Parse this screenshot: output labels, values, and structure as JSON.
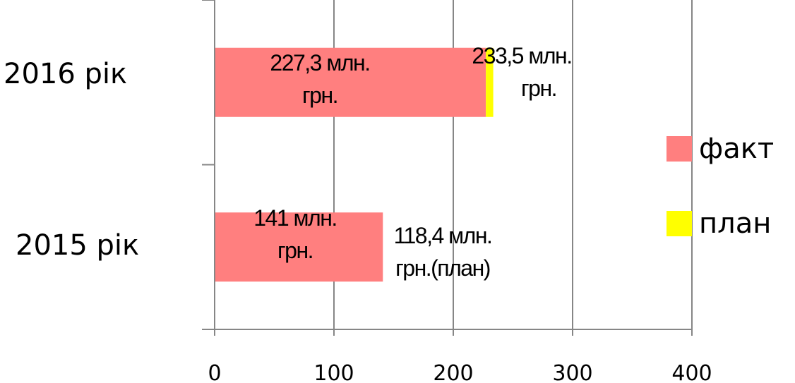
{
  "chart_data": {
    "type": "bar",
    "orientation": "horizontal",
    "stacked": true,
    "categories": [
      "2016  рік",
      "2015 рік"
    ],
    "series": [
      {
        "name": "факт",
        "color": "#ff7f7f",
        "values": [
          227.3,
          141
        ]
      },
      {
        "name": "план",
        "color": "#ffff00",
        "values": [
          6.2,
          0
        ]
      }
    ],
    "data_labels": [
      {
        "line1": "227,3 млн.",
        "line2": "грн."
      },
      {
        "line1": "233,5 млн.",
        "line2": "грн."
      },
      {
        "line1": "141 млн.",
        "line2": "грн."
      },
      {
        "line1": "118,4  млн.",
        "line2": "грн.(план)"
      }
    ],
    "x_ticks": [
      "0",
      "100",
      "200",
      "300",
      "400"
    ],
    "xlim": [
      0,
      400
    ],
    "grid": true,
    "legend_position": "right"
  }
}
